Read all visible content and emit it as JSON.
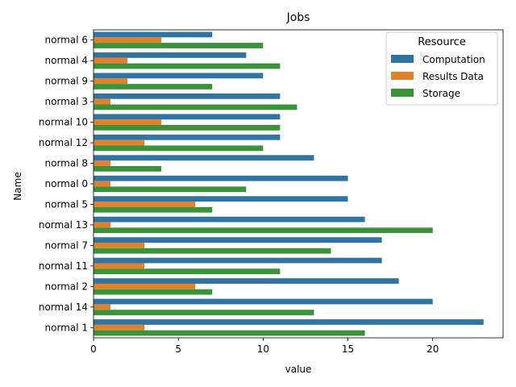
{
  "chart_data": {
    "type": "bar",
    "orientation": "horizontal",
    "title": "Jobs",
    "xlabel": "value",
    "ylabel": "Name",
    "xlim": [
      0,
      24.15
    ],
    "xticks": [
      "0",
      "5",
      "10",
      "15",
      "20"
    ],
    "categories": [
      "normal 6",
      "normal 4",
      "normal 9",
      "normal 3",
      "normal 10",
      "normal 12",
      "normal 8",
      "normal 0",
      "normal 5",
      "normal 13",
      "normal 7",
      "normal 11",
      "normal 2",
      "normal 14",
      "normal 1"
    ],
    "legend": {
      "title": "Resource",
      "position": "top-right"
    },
    "series": [
      {
        "name": "Computation",
        "color": "#3274a1",
        "values": [
          7,
          9,
          10,
          11,
          11,
          11,
          13,
          15,
          15,
          16,
          17,
          17,
          18,
          20,
          23
        ]
      },
      {
        "name": "Results Data",
        "color": "#e1812c",
        "values": [
          4,
          2,
          2,
          1,
          4,
          3,
          1,
          1,
          6,
          1,
          3,
          3,
          6,
          1,
          3
        ]
      },
      {
        "name": "Storage",
        "color": "#3a923a",
        "values": [
          10,
          11,
          7,
          12,
          11,
          10,
          4,
          9,
          7,
          20,
          14,
          11,
          7,
          13,
          16
        ]
      }
    ]
  }
}
